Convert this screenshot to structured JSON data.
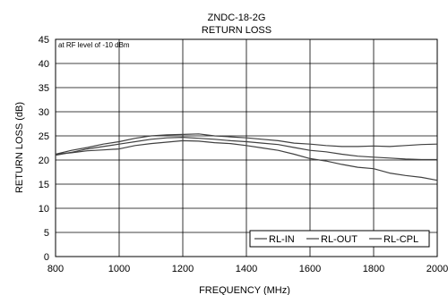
{
  "chart_data": {
    "type": "line",
    "title": "ZNDC-18-2G",
    "subtitle": "RETURN LOSS",
    "annotation": "at RF level of -10 dBm",
    "xlabel": "FREQUENCY (MHz)",
    "ylabel": "RETURN LOSS (dB)",
    "xlim": [
      800,
      2000
    ],
    "ylim": [
      0,
      45
    ],
    "xticks": [
      800,
      1000,
      1200,
      1400,
      1600,
      1800,
      2000
    ],
    "yticks": [
      0,
      5,
      10,
      15,
      20,
      25,
      30,
      35,
      40,
      45
    ],
    "grid": true,
    "legend_position": "bottom-right",
    "line_color": "#404040",
    "series": [
      {
        "name": "RL-IN",
        "x": [
          800,
          850,
          900,
          950,
          1000,
          1050,
          1100,
          1150,
          1200,
          1250,
          1300,
          1350,
          1400,
          1450,
          1500,
          1550,
          1600,
          1650,
          1700,
          1750,
          1800,
          1850,
          1900,
          1950,
          2000
        ],
        "y": [
          21.2,
          22.0,
          22.6,
          23.3,
          23.8,
          24.5,
          25.0,
          25.2,
          25.3,
          25.4,
          25.0,
          24.8,
          24.6,
          24.3,
          24.0,
          23.5,
          23.3,
          23.0,
          22.8,
          22.8,
          22.9,
          22.8,
          23.0,
          23.2,
          23.3
        ]
      },
      {
        "name": "RL-OUT",
        "x": [
          800,
          850,
          900,
          950,
          1000,
          1050,
          1100,
          1150,
          1200,
          1250,
          1300,
          1350,
          1400,
          1450,
          1500,
          1550,
          1600,
          1650,
          1700,
          1750,
          1800,
          1850,
          1900,
          1950,
          2000
        ],
        "y": [
          21.0,
          21.6,
          22.3,
          22.8,
          23.3,
          23.8,
          24.3,
          24.6,
          24.7,
          24.5,
          24.3,
          24.0,
          23.8,
          23.5,
          23.2,
          22.6,
          22.0,
          21.7,
          21.2,
          20.8,
          20.6,
          20.4,
          20.2,
          20.1,
          20.1
        ]
      },
      {
        "name": "RL-CPL",
        "x": [
          800,
          850,
          900,
          950,
          1000,
          1050,
          1100,
          1150,
          1200,
          1250,
          1300,
          1350,
          1400,
          1450,
          1500,
          1550,
          1600,
          1650,
          1700,
          1750,
          1800,
          1850,
          1900,
          1950,
          2000
        ],
        "y": [
          21.2,
          21.5,
          21.9,
          22.1,
          22.3,
          23.0,
          23.4,
          23.7,
          24.0,
          23.9,
          23.6,
          23.4,
          23.0,
          22.5,
          22.0,
          21.2,
          20.3,
          19.8,
          19.1,
          18.5,
          18.2,
          17.3,
          16.8,
          16.4,
          15.8
        ]
      }
    ]
  }
}
